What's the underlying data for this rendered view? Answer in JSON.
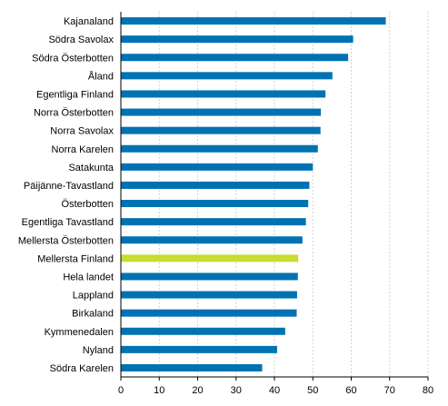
{
  "chart_data": {
    "type": "bar",
    "orientation": "horizontal",
    "categories": [
      "Kajanaland",
      "Södra Savolax",
      "Södra Österbotten",
      "Åland",
      "Egentliga Finland",
      "Norra Österbotten",
      "Norra Savolax",
      "Norra Karelen",
      "Satakunta",
      "Päijänne-Tavastland",
      "Österbotten",
      "Egentliga Tavastland",
      "Mellersta Österbotten",
      "Mellersta Finland",
      "Hela landet",
      "Lappland",
      "Birkaland",
      "Kymmenedalen",
      "Nyland",
      "Södra Karelen"
    ],
    "values": [
      69.0,
      60.5,
      59.2,
      55.1,
      53.3,
      52.1,
      52.0,
      51.3,
      50.0,
      49.1,
      48.8,
      48.2,
      47.3,
      46.2,
      46.1,
      45.9,
      45.8,
      42.8,
      40.7,
      36.8
    ],
    "highlight_category": "Mellersta Finland",
    "colors": {
      "default": "#0072b2",
      "highlight": "#c8dc32",
      "grid": "#c8c8c8",
      "axis": "#000000"
    },
    "xlim": [
      0,
      80
    ],
    "xticks": [
      0,
      10,
      20,
      30,
      40,
      50,
      60,
      70,
      80
    ],
    "grid": "vertical-dashed",
    "title": "",
    "xlabel": "",
    "ylabel": ""
  }
}
